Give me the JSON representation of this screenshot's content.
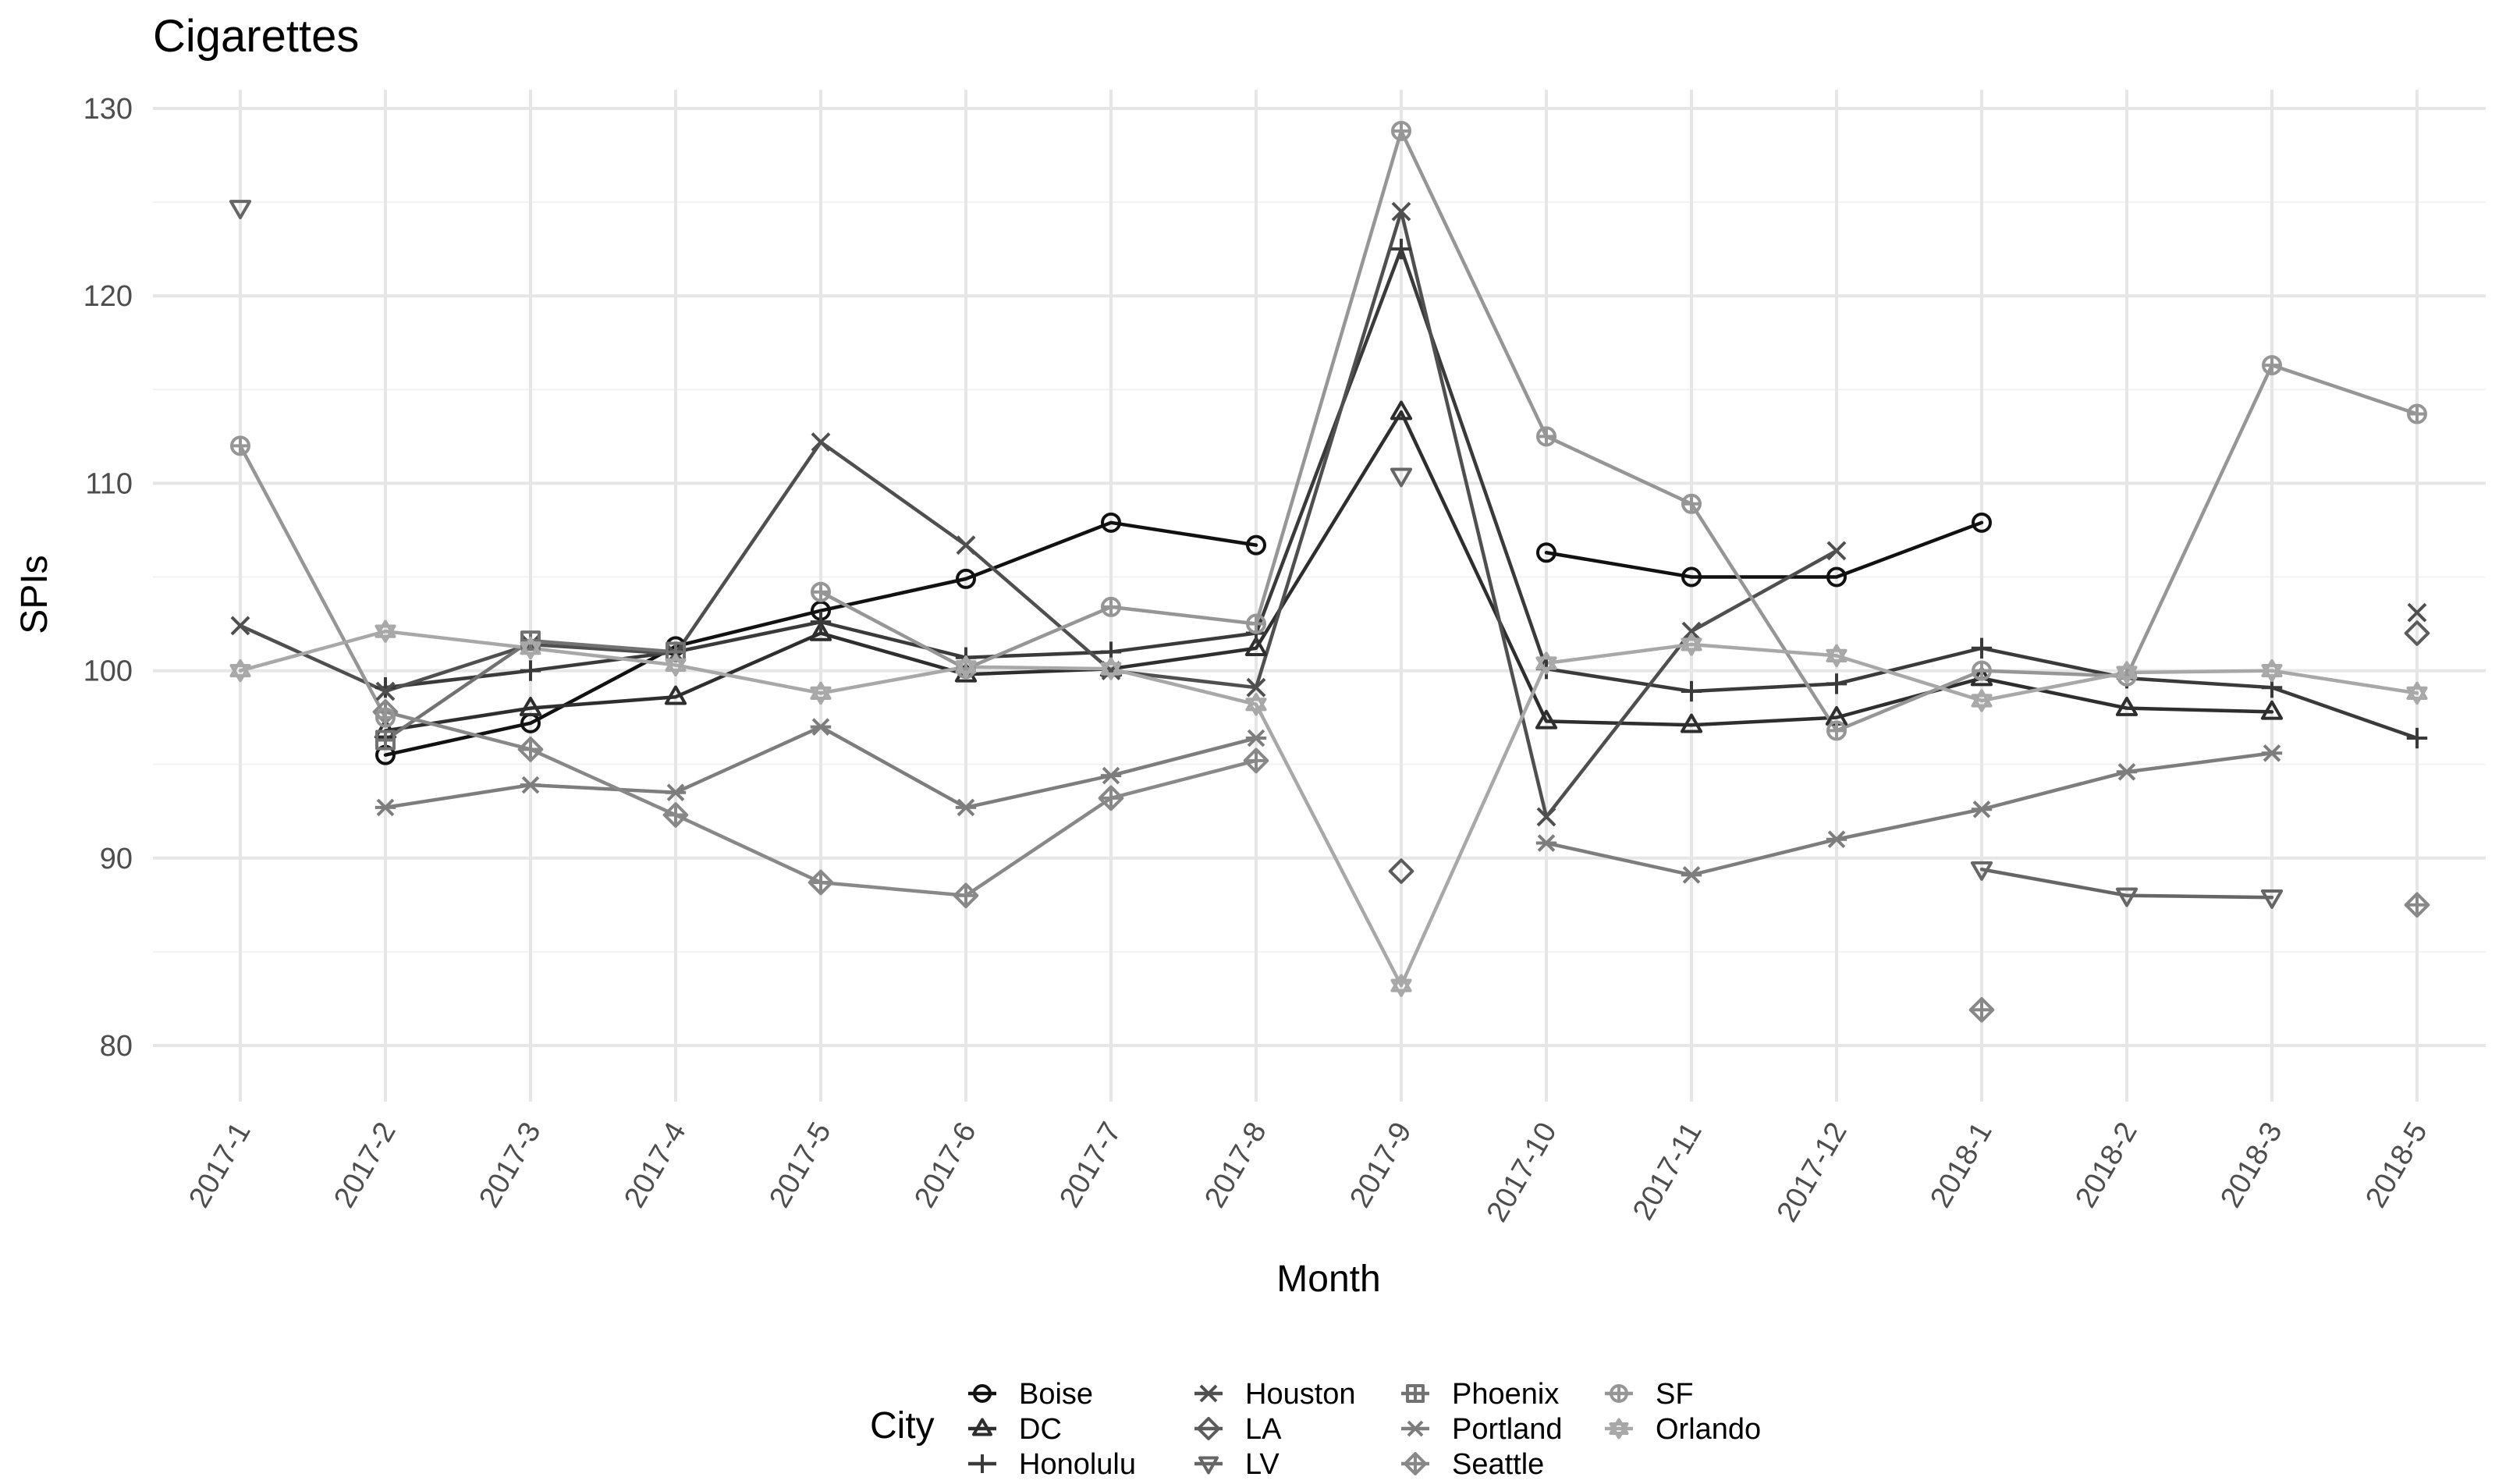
{
  "chart_data": {
    "type": "line",
    "title": "Cigarettes",
    "xlabel": "Month",
    "ylabel": "SPIs",
    "categories": [
      "2017-1",
      "2017-2",
      "2017-3",
      "2017-4",
      "2017-5",
      "2017-6",
      "2017-7",
      "2017-8",
      "2017-9",
      "2017-10",
      "2017-11",
      "2017-12",
      "2018-1",
      "2018-2",
      "2018-3",
      "2018-5"
    ],
    "ylim": [
      77,
      131
    ],
    "yticks": [
      80,
      90,
      100,
      110,
      120,
      130
    ],
    "grid": true,
    "legend": {
      "title": "City",
      "position": "bottom"
    },
    "series": [
      {
        "name": "Boise",
        "shape": "circle",
        "color": "#111111",
        "values": [
          null,
          95.5,
          97.2,
          101.3,
          103.2,
          104.9,
          107.9,
          106.7,
          null,
          106.3,
          105.0,
          105.0,
          107.9,
          null,
          null,
          null
        ]
      },
      {
        "name": "DC",
        "shape": "triangle-up",
        "color": "#2e2e2e",
        "values": [
          null,
          96.8,
          98.0,
          98.6,
          102.0,
          99.8,
          100.1,
          101.2,
          113.8,
          97.3,
          97.1,
          97.5,
          99.6,
          98.0,
          97.8,
          null
        ]
      },
      {
        "name": "Honolulu",
        "shape": "plus",
        "color": "#3a3a3a",
        "values": [
          null,
          99.1,
          100.0,
          101.0,
          102.6,
          100.7,
          101.0,
          102.0,
          122.5,
          100.1,
          98.9,
          99.3,
          101.2,
          99.6,
          99.1,
          96.4
        ]
      },
      {
        "name": "Houston",
        "shape": "x",
        "color": "#4f4f4f",
        "values": [
          102.4,
          98.9,
          101.4,
          100.9,
          112.2,
          106.7,
          100.0,
          99.1,
          124.5,
          92.2,
          102.1,
          106.4,
          null,
          null,
          null,
          103.1
        ]
      },
      {
        "name": "LA",
        "shape": "diamond",
        "color": "#5c5c5c",
        "values": [
          null,
          null,
          null,
          null,
          null,
          null,
          null,
          null,
          89.3,
          null,
          null,
          null,
          null,
          null,
          null,
          102.0
        ]
      },
      {
        "name": "LV",
        "shape": "triangle-down",
        "color": "#666666",
        "values": [
          124.7,
          null,
          null,
          null,
          null,
          null,
          null,
          null,
          110.4,
          null,
          null,
          null,
          89.4,
          88.0,
          87.9,
          null
        ]
      },
      {
        "name": "Phoenix",
        "shape": "square-cross",
        "color": "#727272",
        "values": [
          null,
          96.3,
          101.6,
          101.0,
          null,
          null,
          null,
          null,
          null,
          null,
          null,
          null,
          null,
          null,
          null,
          null
        ]
      },
      {
        "name": "Portland",
        "shape": "asterisk",
        "color": "#7d7d7d",
        "values": [
          null,
          92.7,
          93.9,
          93.5,
          97.0,
          92.7,
          94.4,
          96.4,
          null,
          90.8,
          89.1,
          91.0,
          92.6,
          94.6,
          95.6,
          null
        ]
      },
      {
        "name": "Seattle",
        "shape": "diamond-plus",
        "color": "#888888",
        "values": [
          null,
          97.8,
          95.8,
          92.3,
          88.7,
          88.0,
          93.2,
          95.2,
          null,
          null,
          null,
          null,
          81.9,
          null,
          null,
          87.5
        ]
      },
      {
        "name": "SF",
        "shape": "circle-plus",
        "color": "#969696",
        "values": [
          112.0,
          97.5,
          null,
          null,
          104.2,
          100.1,
          103.4,
          102.5,
          128.8,
          112.5,
          108.9,
          96.8,
          100.0,
          99.7,
          116.3,
          113.7
        ]
      },
      {
        "name": "Orlando",
        "shape": "star",
        "color": "#a8a8a8",
        "values": [
          100.0,
          102.1,
          101.2,
          100.3,
          98.8,
          100.2,
          100.1,
          98.2,
          83.2,
          100.4,
          101.4,
          100.8,
          98.4,
          99.9,
          100.0,
          98.8
        ]
      }
    ]
  }
}
